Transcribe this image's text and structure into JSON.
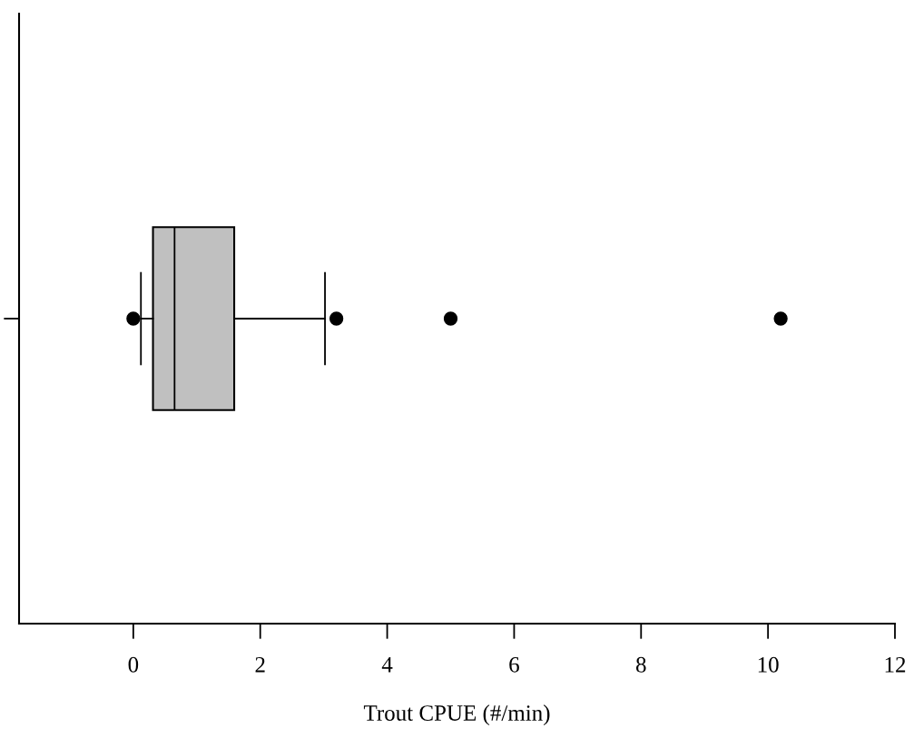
{
  "chart_data": {
    "type": "box",
    "orientation": "horizontal",
    "xlabel": "Trout CPUE (#/min)",
    "categories": [
      null
    ],
    "boxes": [
      {
        "low": 0.12,
        "q1": 0.31,
        "median": 0.65,
        "q3": 1.59,
        "high": 3.02,
        "outliers": [
          0.0,
          3.2,
          5.0,
          10.2
        ]
      }
    ],
    "color": "#c0c0c0",
    "xlim": [
      -1.8,
      12
    ],
    "xticks": [
      0,
      2,
      4,
      6,
      8,
      10,
      12
    ],
    "tick_labels": "x",
    "grid": false
  }
}
